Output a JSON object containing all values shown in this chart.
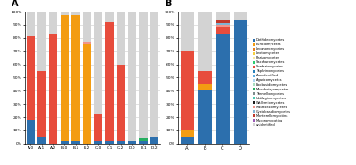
{
  "legend_labels": [
    "unidentified",
    "Mucoromycotina",
    "Mortierellomycotina",
    "Cystobasidiomycetes",
    "Malasseziomycetes",
    "Wallemiomycetes",
    "Ustilaginomycetes",
    "Tremellomycetes",
    "Microbotryomycetes",
    "Exobasidiomycetes",
    "Agaricomycetes",
    "A-unidentified",
    "Taphrinomycetes",
    "Sordariomycetes",
    "Saccharomycetes",
    "Pezizomycetes",
    "Leotiomycetes",
    "Lecanoromycetes",
    "Eurotiomycetes",
    "Dothideomycetes"
  ],
  "legend_colors": [
    "#d3d3d3",
    "#9b59b6",
    "#c0392b",
    "#7fb3d3",
    "#f1948a",
    "#1c1c1c",
    "#48c9b0",
    "#7f8c8d",
    "#27ae60",
    "#a9dfbf",
    "#aed6f1",
    "#5dade2",
    "#2980b9",
    "#e74c3c",
    "#2ecc71",
    "#f9e79f",
    "#f4d03f",
    "#e67e22",
    "#f39c12",
    "#2c6fad"
  ],
  "bar_labels_A": [
    "A-0",
    "A-1",
    "A-2",
    "B-0",
    "B-1",
    "B-2",
    "C-0",
    "C-1",
    "C-2",
    "D-0",
    "D-1",
    "D-2"
  ],
  "bar_data_A": {
    "Dothideomycetes": [
      18,
      5,
      0,
      2,
      2,
      0,
      2,
      2,
      2,
      2,
      2,
      5
    ],
    "Eurotiomycetes": [
      0,
      0,
      0,
      95,
      95,
      75,
      0,
      0,
      0,
      0,
      0,
      0
    ],
    "Lecanoromycetes": [
      0,
      0,
      0,
      0,
      0,
      0,
      0,
      0,
      0,
      0,
      0,
      0
    ],
    "Leotiomycetes": [
      0,
      0,
      0,
      0,
      0,
      0,
      0,
      0,
      0,
      0,
      0,
      0
    ],
    "Pezizomycetes": [
      0,
      0,
      0,
      0,
      0,
      0,
      0,
      0,
      0,
      0,
      0,
      0
    ],
    "Saccharomycetes": [
      0,
      0,
      0,
      0,
      0,
      0,
      0,
      0,
      0,
      0,
      0,
      0
    ],
    "Sordariomycetes": [
      63,
      50,
      83,
      0,
      0,
      0,
      21,
      90,
      58,
      0,
      0,
      0
    ],
    "Taphrinomycetes": [
      0,
      0,
      0,
      0,
      0,
      0,
      0,
      0,
      0,
      0,
      0,
      0
    ],
    "A-unidentified": [
      0,
      0,
      0,
      0,
      0,
      0,
      0,
      0,
      0,
      0,
      0,
      0
    ],
    "Agaricomycetes": [
      0,
      0,
      0,
      0,
      0,
      0,
      0,
      0,
      0,
      0,
      0,
      0
    ],
    "Exobasidiomycetes": [
      0,
      0,
      0,
      0,
      0,
      0,
      0,
      0,
      0,
      0,
      0,
      0
    ],
    "Microbotryomycetes": [
      0,
      0,
      0,
      0,
      0,
      0,
      0,
      0,
      0,
      0,
      2,
      0
    ],
    "Tremellomycetes": [
      0,
      0,
      0,
      0,
      0,
      0,
      0,
      0,
      0,
      0,
      0,
      0
    ],
    "Ustilaginomycetes": [
      0,
      0,
      0,
      0,
      0,
      0,
      0,
      0,
      0,
      0,
      0,
      0
    ],
    "Wallemiomycetes": [
      0,
      0,
      0,
      0,
      0,
      0,
      0,
      0,
      0,
      0,
      0,
      0
    ],
    "Malasseziomycetes": [
      0,
      0,
      0,
      0,
      0,
      2,
      0,
      0,
      0,
      0,
      0,
      0
    ],
    "Cystobasidiomycetes": [
      0,
      0,
      0,
      0,
      0,
      0,
      0,
      0,
      0,
      0,
      0,
      0
    ],
    "Mortierellomycotina": [
      0,
      0,
      0,
      0,
      0,
      0,
      0,
      0,
      0,
      0,
      0,
      0
    ],
    "Mucoromycotina": [
      0,
      0,
      0,
      0,
      0,
      0,
      0,
      0,
      0,
      0,
      0,
      0
    ],
    "unidentified": [
      19,
      45,
      17,
      3,
      3,
      23,
      77,
      8,
      40,
      98,
      96,
      95
    ]
  },
  "bar_labels_B": [
    "A",
    "B",
    "C",
    "D"
  ],
  "bar_data_B": {
    "Dothideomycetes": [
      5,
      40,
      83,
      93
    ],
    "Eurotiomycetes": [
      5,
      5,
      0,
      0
    ],
    "Lecanoromycetes": [
      0,
      0,
      0,
      0
    ],
    "Leotiomycetes": [
      0,
      0,
      0,
      0
    ],
    "Pezizomycetes": [
      0,
      0,
      0,
      0
    ],
    "Saccharomycetes": [
      0,
      0,
      0,
      0
    ],
    "Sordariomycetes": [
      60,
      10,
      5,
      0
    ],
    "Taphrinomycetes": [
      0,
      0,
      0,
      0
    ],
    "A-unidentified": [
      0,
      0,
      0,
      0
    ],
    "Agaricomycetes": [
      0,
      0,
      0,
      0
    ],
    "Exobasidiomycetes": [
      0,
      0,
      0,
      0
    ],
    "Microbotryomycetes": [
      0,
      0,
      0,
      0
    ],
    "Tremellomycetes": [
      0,
      0,
      0,
      0
    ],
    "Ustilaginomycetes": [
      0,
      0,
      0,
      0
    ],
    "Wallemiomycetes": [
      0,
      0,
      0,
      0
    ],
    "Malasseziomycetes": [
      0,
      0,
      2,
      0
    ],
    "Cystobasidiomycetes": [
      0,
      0,
      1,
      0
    ],
    "Mortierellomycotina": [
      0,
      0,
      2,
      0
    ],
    "Mucoromycotina": [
      0,
      0,
      0,
      0
    ],
    "unidentified": [
      30,
      45,
      7,
      7
    ]
  },
  "stack_order": [
    "Dothideomycetes",
    "Eurotiomycetes",
    "Lecanoromycetes",
    "Leotiomycetes",
    "Pezizomycetes",
    "Saccharomycetes",
    "Sordariomycetes",
    "Taphrinomycetes",
    "A-unidentified",
    "Agaricomycetes",
    "Exobasidiomycetes",
    "Microbotryomycetes",
    "Tremellomycetes",
    "Ustilaginomycetes",
    "Wallemiomycetes",
    "Malasseziomycetes",
    "Cystobasidiomycetes",
    "Mortierellomycotina",
    "Mucoromycotina",
    "unidentified"
  ]
}
